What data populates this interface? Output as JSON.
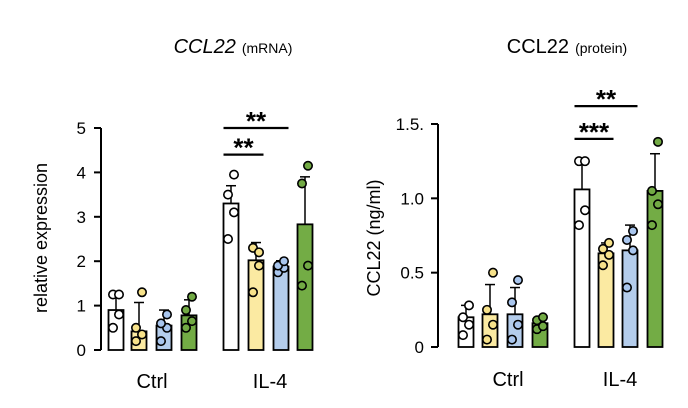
{
  "chart_data": [
    {
      "type": "bar",
      "title_main": "CCL22",
      "title_sub": "(mRNA)",
      "ylabel": "relative expression",
      "xlabel": "",
      "ylim": [
        0,
        5
      ],
      "yticks": [
        "0",
        "1",
        "2",
        "3",
        "4",
        "5"
      ],
      "groups": [
        "Ctrl",
        "IL-4"
      ],
      "bar_colors": [
        "#ffffff",
        "#fbeaa2",
        "#b4cdec",
        "#73ac45"
      ],
      "dot_colors": [
        "#ffffff",
        "#f7e28a",
        "#a9c6ee",
        "#72aa44"
      ],
      "bars": [
        {
          "mean": 0.9,
          "sd": 0.4,
          "points": [
            0.5,
            0.8,
            1.25,
            1.25
          ]
        },
        {
          "mean": 0.42,
          "sd": 0.65,
          "points": [
            0.2,
            0.35,
            0.5,
            1.3
          ]
        },
        {
          "mean": 0.55,
          "sd": 0.35,
          "points": [
            0.2,
            0.5,
            0.6,
            0.8
          ]
        },
        {
          "mean": 0.78,
          "sd": 0.35,
          "points": [
            0.5,
            0.65,
            0.9,
            1.2
          ]
        },
        {
          "mean": 3.3,
          "sd": 0.4,
          "points": [
            2.5,
            3.1,
            3.5,
            3.95
          ]
        },
        {
          "mean": 2.02,
          "sd": 0.4,
          "points": [
            1.3,
            1.9,
            2.3,
            2.2
          ]
        },
        {
          "mean": 1.88,
          "sd": 0.13,
          "points": [
            1.75,
            1.85,
            1.9,
            2.0
          ]
        },
        {
          "mean": 2.83,
          "sd": 1.07,
          "points": [
            1.45,
            1.9,
            3.75,
            4.15
          ]
        }
      ],
      "significance": [
        {
          "label": "**",
          "from_bar": 4,
          "to_bar": 5,
          "y": 4.4
        },
        {
          "label": "**",
          "from_bar": 4,
          "to_bar": 6,
          "y": 5.0
        }
      ]
    },
    {
      "type": "bar",
      "title_main": "CCL22",
      "title_sub": "(protein)",
      "ylabel": "CCL22 (ng/ml)",
      "xlabel": "",
      "ylim": [
        0,
        1.5
      ],
      "yticks": [
        "0",
        "0.5",
        "1.0",
        "1.5."
      ],
      "groups": [
        "Ctrl",
        "IL-4"
      ],
      "bar_colors": [
        "#ffffff",
        "#fbeaa2",
        "#b4cdec",
        "#73ac45"
      ],
      "dot_colors": [
        "#ffffff",
        "#f7e28a",
        "#a9c6ee",
        "#72aa44"
      ],
      "bars": [
        {
          "mean": 0.2,
          "sd": 0.08,
          "points": [
            0.08,
            0.15,
            0.2,
            0.28
          ]
        },
        {
          "mean": 0.22,
          "sd": 0.2,
          "points": [
            0.05,
            0.15,
            0.25,
            0.5
          ]
        },
        {
          "mean": 0.22,
          "sd": 0.18,
          "points": [
            0.05,
            0.15,
            0.3,
            0.45
          ]
        },
        {
          "mean": 0.16,
          "sd": 0.04,
          "points": [
            0.12,
            0.14,
            0.18,
            0.2
          ]
        },
        {
          "mean": 1.06,
          "sd": 0.2,
          "points": [
            0.82,
            0.92,
            1.25,
            1.25
          ]
        },
        {
          "mean": 0.63,
          "sd": 0.07,
          "points": [
            0.55,
            0.62,
            0.66,
            0.7
          ]
        },
        {
          "mean": 0.65,
          "sd": 0.17,
          "points": [
            0.4,
            0.65,
            0.72,
            0.78
          ]
        },
        {
          "mean": 1.05,
          "sd": 0.25,
          "points": [
            0.82,
            0.96,
            1.05,
            1.38
          ]
        }
      ],
      "significance": [
        {
          "label": "***",
          "from_bar": 4,
          "to_bar": 5,
          "y": 1.4
        },
        {
          "label": "**",
          "from_bar": 4,
          "to_bar": 6,
          "y": 1.62
        }
      ]
    }
  ]
}
